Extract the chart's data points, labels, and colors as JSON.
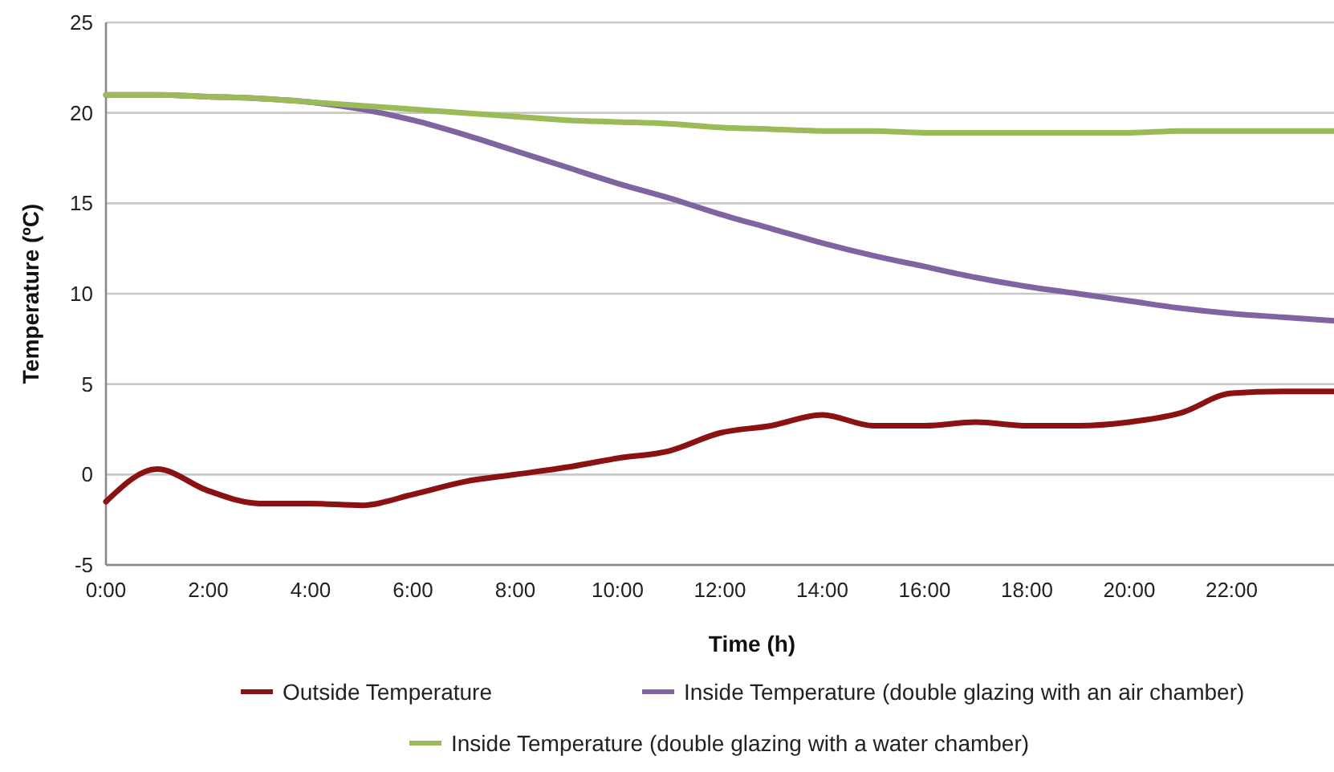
{
  "chart_data": {
    "type": "line",
    "xlabel": "Time (h)",
    "ylabel": "Temperature (ºC)",
    "x": [
      0,
      1,
      2,
      3,
      4,
      5,
      6,
      7,
      8,
      9,
      10,
      11,
      12,
      13,
      14,
      15,
      16,
      17,
      18,
      19,
      20,
      21,
      22,
      23,
      24
    ],
    "xlim": [
      0,
      24
    ],
    "xticks": [
      {
        "value": 0,
        "label": "0:00"
      },
      {
        "value": 2,
        "label": "2:00"
      },
      {
        "value": 4,
        "label": "4:00"
      },
      {
        "value": 6,
        "label": "6:00"
      },
      {
        "value": 8,
        "label": "8:00"
      },
      {
        "value": 10,
        "label": "10:00"
      },
      {
        "value": 12,
        "label": "12:00"
      },
      {
        "value": 14,
        "label": "14:00"
      },
      {
        "value": 16,
        "label": "16:00"
      },
      {
        "value": 18,
        "label": "18:00"
      },
      {
        "value": 20,
        "label": "20:00"
      },
      {
        "value": 22,
        "label": "22:00"
      }
    ],
    "ylim": [
      -5,
      25
    ],
    "yticks": [
      -5,
      0,
      5,
      10,
      15,
      20,
      25
    ],
    "grid": "y",
    "legend": "bottom",
    "series": [
      {
        "name": "Outside Temperature",
        "color": "#8b1212",
        "values": [
          -1.5,
          0.3,
          -0.9,
          -1.6,
          -1.6,
          -1.7,
          -1.1,
          -0.4,
          0,
          0.4,
          0.9,
          1.3,
          2.3,
          2.7,
          3.3,
          2.7,
          2.7,
          2.9,
          2.7,
          2.7,
          2.9,
          3.4,
          4.5,
          4.6,
          4.6
        ]
      },
      {
        "name": "Inside Temperature (double glazing with an air chamber)",
        "color": "#8064a2",
        "values": [
          21,
          21,
          20.9,
          20.8,
          20.6,
          20.2,
          19.6,
          18.8,
          17.9,
          17.0,
          16.1,
          15.3,
          14.4,
          13.6,
          12.8,
          12.1,
          11.5,
          10.9,
          10.4,
          10.0,
          9.6,
          9.2,
          8.9,
          8.7,
          8.5
        ]
      },
      {
        "name": "Inside Temperature (double glazing with a water chamber)",
        "color": "#9bbb59",
        "values": [
          21,
          21,
          20.9,
          20.8,
          20.6,
          20.4,
          20.2,
          20.0,
          19.8,
          19.6,
          19.5,
          19.4,
          19.2,
          19.1,
          19.0,
          19.0,
          18.9,
          18.9,
          18.9,
          18.9,
          18.9,
          19.0,
          19.0,
          19.0,
          19.0
        ]
      }
    ]
  }
}
